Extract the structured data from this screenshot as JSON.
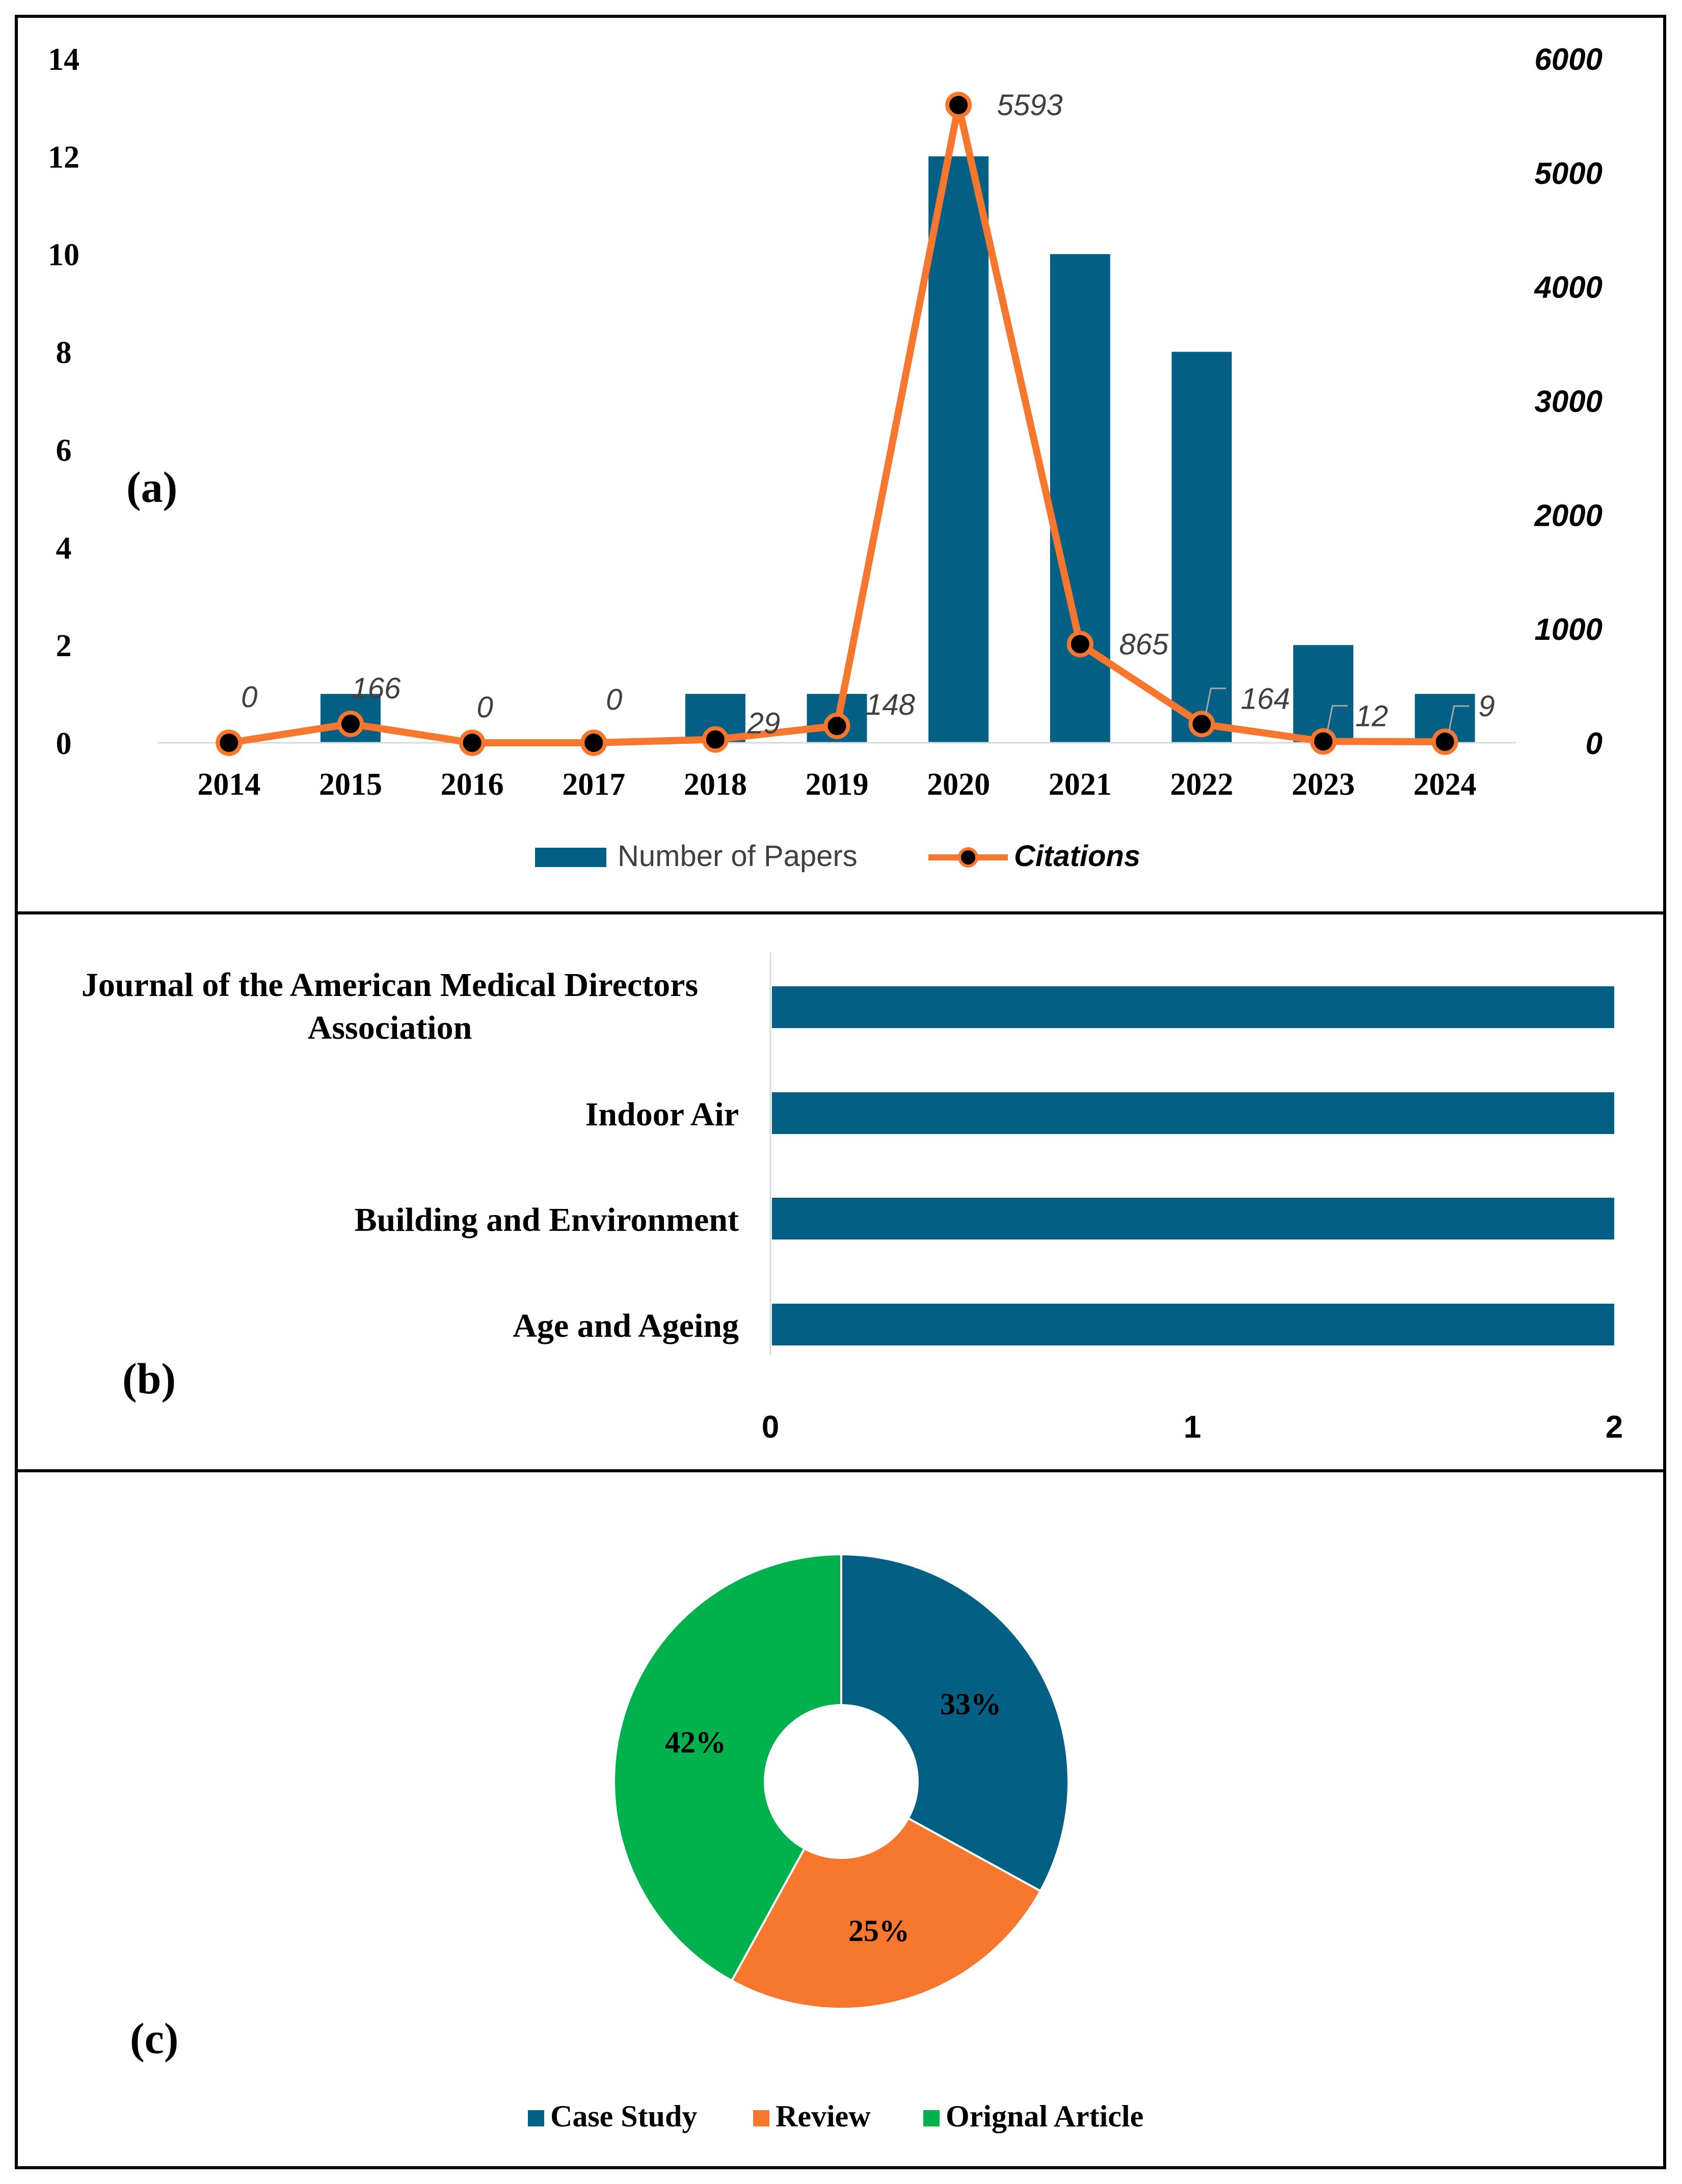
{
  "chart_data": [
    {
      "panel_label": "(a)",
      "type": "bar",
      "categories": [
        "2014",
        "2015",
        "2016",
        "2017",
        "2018",
        "2019",
        "2020",
        "2021",
        "2022",
        "2023",
        "2024"
      ],
      "series": [
        {
          "name": "Number of Papers",
          "kind": "bar",
          "axis": "left",
          "values": [
            0,
            1,
            0,
            0,
            1,
            1,
            12,
            10,
            8,
            2,
            1
          ]
        },
        {
          "name": "Citations",
          "kind": "line",
          "axis": "right",
          "values": [
            0,
            166,
            0,
            0,
            29,
            148,
            5593,
            865,
            164,
            12,
            9
          ]
        }
      ],
      "y_left": {
        "ylim": [
          0,
          14
        ],
        "ticks": [
          "0",
          "2",
          "4",
          "6",
          "8",
          "10",
          "12",
          "14"
        ]
      },
      "y_right": {
        "ylim": [
          0,
          6000
        ],
        "ticks": [
          "0",
          "1000",
          "2000",
          "3000",
          "4000",
          "5000",
          "6000"
        ]
      },
      "data_labels": [
        "0",
        "166",
        "0",
        "0",
        "29",
        "148",
        "5593",
        "865",
        "164",
        "12",
        "9"
      ],
      "legend": {
        "position": "bottom",
        "entries": [
          "Number of Papers",
          "Citations"
        ]
      },
      "colors": {
        "bar": "#045F84",
        "line": "#F7772F",
        "marker": "#000000"
      }
    },
    {
      "panel_label": "(b)",
      "type": "bar",
      "orientation": "horizontal",
      "categories": [
        "Journal of the American Medical Directors Association",
        "Indoor Air",
        "Building and Environment",
        "Age and Ageing"
      ],
      "category_lines": [
        [
          "Journal of the American Medical Directors",
          "Association"
        ],
        [
          "Indoor Air"
        ],
        [
          "Building and Environment"
        ],
        [
          "Age and Ageing"
        ]
      ],
      "values": [
        2,
        2,
        2,
        2
      ],
      "xlim": [
        0,
        2
      ],
      "x_ticks": [
        "0",
        "1",
        "2"
      ],
      "colors": {
        "bar": "#045F84"
      }
    },
    {
      "panel_label": "(c)",
      "type": "pie",
      "donut": true,
      "slices": [
        {
          "label": "Case Study",
          "value": 33,
          "display": "33%",
          "color": "#045F84"
        },
        {
          "label": "Review",
          "value": 25,
          "display": "25%",
          "color": "#F7772F"
        },
        {
          "label": "Orignal Article",
          "value": 42,
          "display": "42%",
          "color": "#00B14D"
        }
      ],
      "legend": {
        "position": "bottom"
      }
    }
  ]
}
